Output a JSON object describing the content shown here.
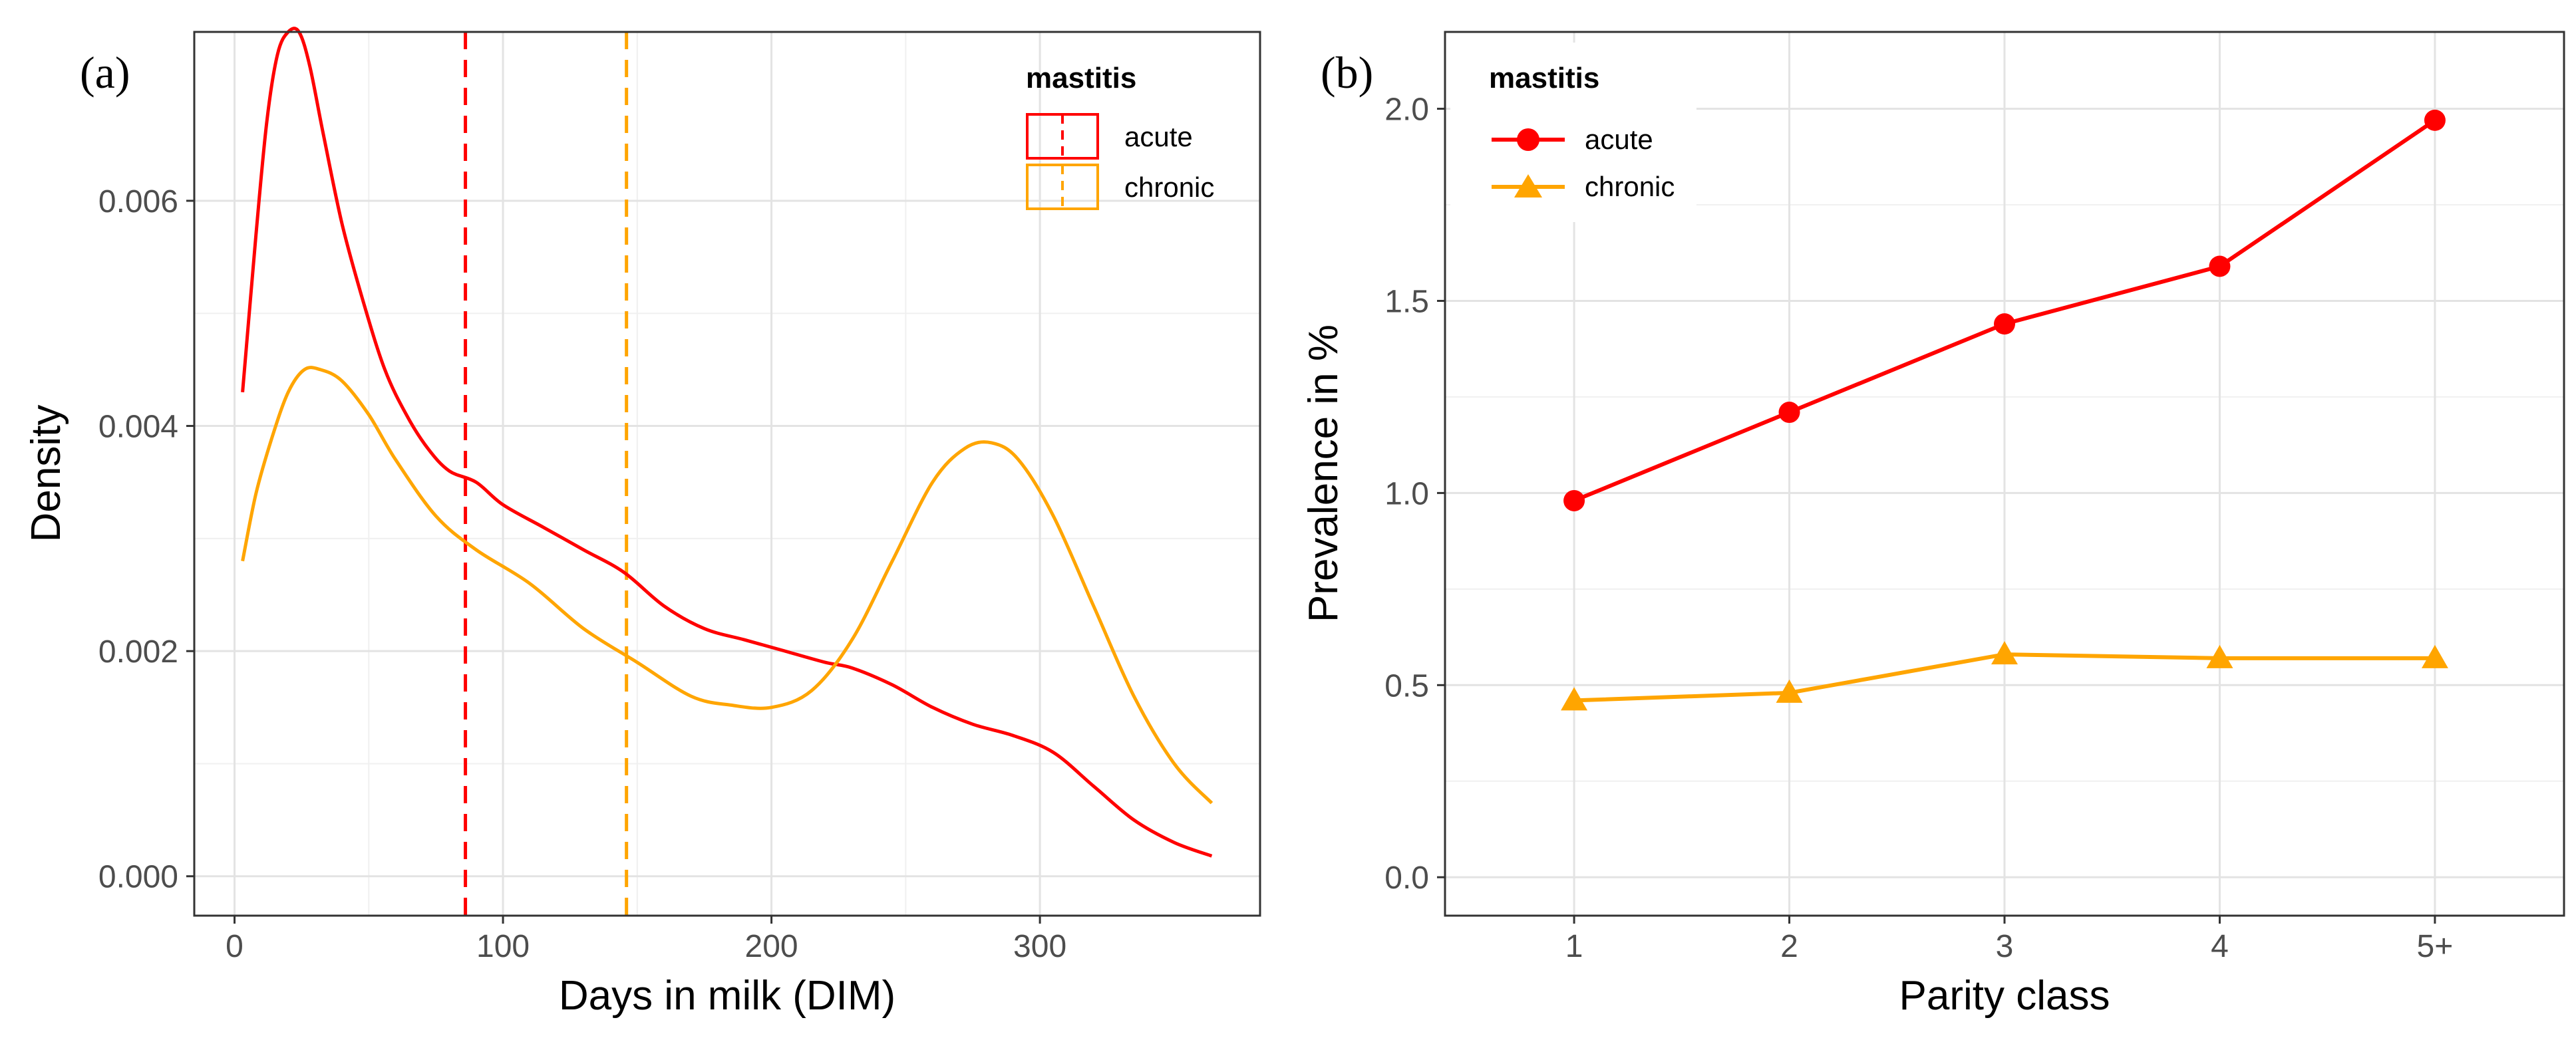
{
  "chart_data": [
    {
      "panel_label": "(a)",
      "type": "line",
      "subtype": "density",
      "title": "",
      "xlabel": "Days in milk (DIM)",
      "ylabel": "Density",
      "xlim": [
        -15,
        382
      ],
      "ylim": [
        -0.00035,
        0.0075
      ],
      "xticks": [
        0,
        100,
        200,
        300
      ],
      "xtick_labels": [
        "0",
        "100",
        "200",
        "300"
      ],
      "yticks": [
        0,
        0.002,
        0.004,
        0.006
      ],
      "ytick_labels": [
        "0.000",
        "0.002",
        "0.004",
        "0.006"
      ],
      "grid": true,
      "legend": {
        "title": "mastitis",
        "position": "top-right",
        "entries": [
          "acute",
          "chronic"
        ]
      },
      "series": [
        {
          "name": "acute",
          "color": "#FF0000",
          "x": [
            3,
            8,
            12,
            16,
            20,
            24,
            28,
            33,
            40,
            48,
            56,
            64,
            72,
            80,
            90,
            100,
            115,
            130,
            145,
            160,
            175,
            190,
            205,
            220,
            230,
            245,
            260,
            275,
            290,
            305,
            320,
            335,
            350,
            364
          ],
          "y": [
            0.0043,
            0.0057,
            0.0067,
            0.0073,
            0.0075,
            0.0075,
            0.0072,
            0.0066,
            0.0058,
            0.0051,
            0.0045,
            0.0041,
            0.0038,
            0.0036,
            0.0035,
            0.0033,
            0.0031,
            0.0029,
            0.0027,
            0.0024,
            0.0022,
            0.0021,
            0.002,
            0.0019,
            0.00185,
            0.0017,
            0.0015,
            0.00135,
            0.00125,
            0.0011,
            0.0008,
            0.0005,
            0.0003,
            0.00018
          ]
        },
        {
          "name": "chronic",
          "color": "#FFA500",
          "x": [
            3,
            8,
            14,
            20,
            26,
            32,
            40,
            50,
            60,
            75,
            90,
            110,
            130,
            150,
            170,
            185,
            200,
            215,
            230,
            245,
            260,
            272,
            282,
            292,
            305,
            320,
            335,
            350,
            364
          ],
          "y": [
            0.0028,
            0.0034,
            0.0039,
            0.0043,
            0.0045,
            0.0045,
            0.0044,
            0.0041,
            0.0037,
            0.0032,
            0.0029,
            0.0026,
            0.0022,
            0.0019,
            0.0016,
            0.00152,
            0.0015,
            0.00165,
            0.0021,
            0.0028,
            0.0035,
            0.0038,
            0.00385,
            0.0037,
            0.0032,
            0.0024,
            0.0016,
            0.001,
            0.00065
          ]
        }
      ],
      "vlines": [
        {
          "name": "acute",
          "x": 86,
          "color": "#FF0000",
          "linestyle": "dashed"
        },
        {
          "name": "chronic",
          "x": 146,
          "color": "#FFA500",
          "linestyle": "dashed"
        }
      ]
    },
    {
      "panel_label": "(b)",
      "type": "line",
      "title": "",
      "xlabel": "Parity class",
      "ylabel": "Prevalence in %",
      "categories": [
        "1",
        "2",
        "3",
        "4",
        "5+"
      ],
      "ylim": [
        -0.1,
        2.2
      ],
      "yticks": [
        0,
        0.5,
        1,
        1.5,
        2
      ],
      "ytick_labels": [
        "0.0",
        "0.5",
        "1.0",
        "1.5",
        "2.0"
      ],
      "grid": true,
      "legend": {
        "title": "mastitis",
        "position": "top-left",
        "entries": [
          "acute",
          "chronic"
        ]
      },
      "series": [
        {
          "name": "acute",
          "marker": "circle",
          "color": "#FF0000",
          "values": [
            0.98,
            1.21,
            1.44,
            1.59,
            1.97
          ]
        },
        {
          "name": "chronic",
          "marker": "triangle",
          "color": "#FFA500",
          "values": [
            0.46,
            0.48,
            0.58,
            0.57,
            0.57
          ]
        }
      ]
    }
  ]
}
